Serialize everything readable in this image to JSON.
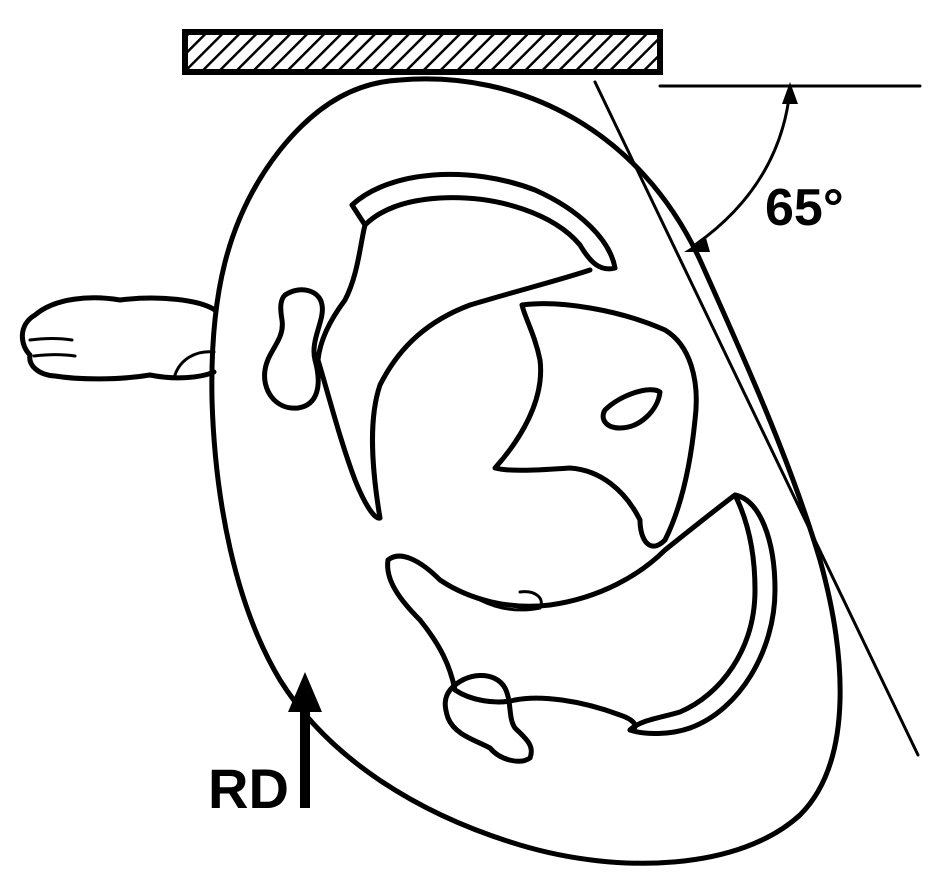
{
  "diagram": {
    "angle_label": "65°",
    "angle_degrees": 65,
    "beam_label": "RD",
    "colors": {
      "ink": "#000000",
      "background": "#ffffff"
    }
  }
}
